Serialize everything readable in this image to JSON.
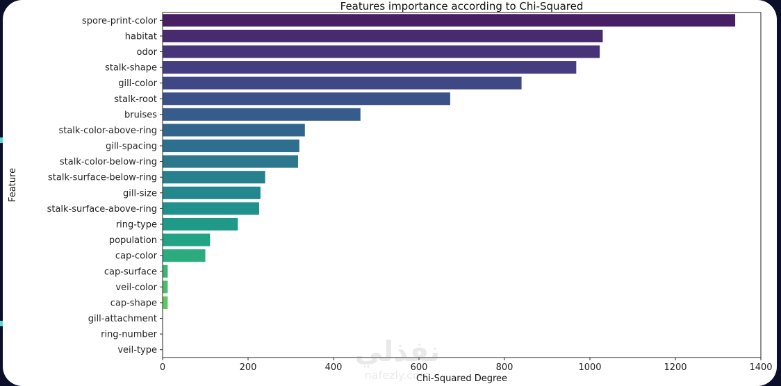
{
  "chart_data": {
    "type": "bar",
    "orientation": "horizontal",
    "title": "Features importance according to Chi-Squared",
    "xlabel": "Chi-Squared Degree",
    "ylabel": "Feature",
    "xlim": [
      0,
      1400
    ],
    "xticks": [
      0,
      200,
      400,
      600,
      800,
      1000,
      1200,
      1400
    ],
    "grid": false,
    "palette": "viridis",
    "categories": [
      "spore-print-color",
      "habitat",
      "odor",
      "stalk-shape",
      "gill-color",
      "stalk-root",
      "bruises",
      "stalk-color-above-ring",
      "gill-spacing",
      "stalk-color-below-ring",
      "stalk-surface-below-ring",
      "gill-size",
      "stalk-surface-above-ring",
      "ring-type",
      "population",
      "cap-color",
      "cap-surface",
      "veil-color",
      "cap-shape",
      "gill-attachment",
      "ring-number",
      "veil-type"
    ],
    "values": [
      1340,
      1030,
      1023,
      968,
      840,
      673,
      463,
      333,
      320,
      317,
      240,
      229,
      226,
      176,
      111,
      100,
      12,
      12,
      12,
      0,
      0,
      0
    ],
    "colors": [
      "#471f62",
      "#482a6e",
      "#473378",
      "#443d80",
      "#3f4885",
      "#3b5289",
      "#365c8b",
      "#32658c",
      "#2e6e8e",
      "#2a778e",
      "#27808d",
      "#23888d",
      "#20918c",
      "#1f9a89",
      "#22a384",
      "#2cab7e",
      "#3bb576",
      "#4dbd6c",
      "#63c660",
      "#7ace53",
      "#93d741",
      "#addc30"
    ]
  },
  "watermark": {
    "arabic": "نفذلي",
    "latin": "nafezly.com"
  }
}
